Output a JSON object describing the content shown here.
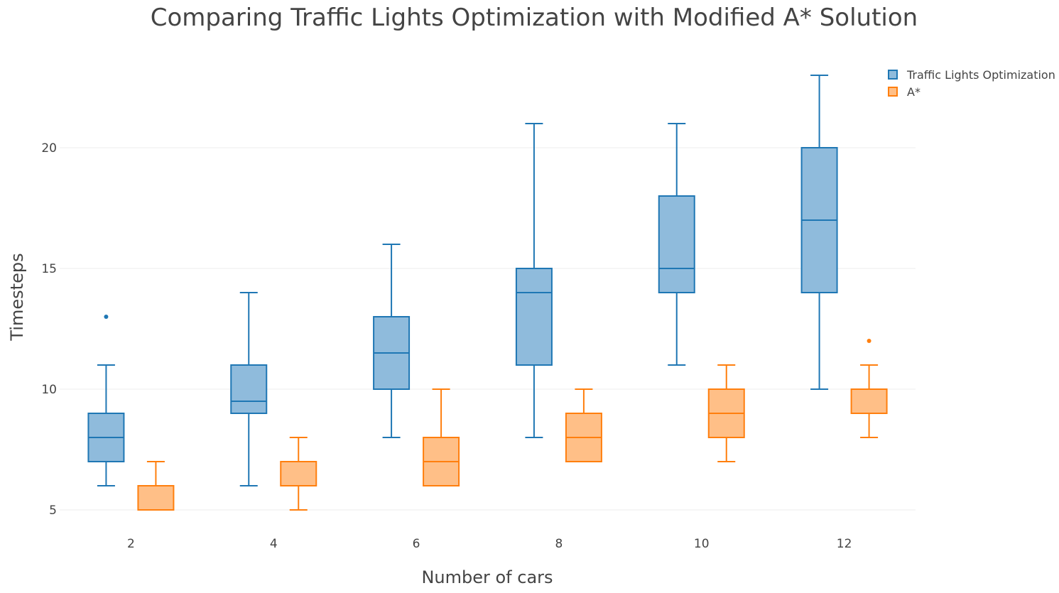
{
  "chart_data": {
    "type": "box",
    "title": "Comparing Traffic Lights Optimization with Modified A* Solution",
    "xlabel": "Number of cars",
    "ylabel": "Timesteps",
    "categories": [
      "2",
      "4",
      "6",
      "8",
      "10",
      "12"
    ],
    "y_ticks": [
      "5",
      "10",
      "15",
      "20"
    ],
    "ylim": [
      4.5,
      24.5
    ],
    "grid": true,
    "legend_position": "top-right",
    "series": [
      {
        "name": "Traffic Lights Optimization",
        "color": "#1f77b4",
        "fill": "#8fbbdc",
        "boxes": [
          {
            "min": 6,
            "q1": 7,
            "median": 8,
            "q3": 9,
            "max": 11,
            "outliers": [
              13
            ]
          },
          {
            "min": 6,
            "q1": 9,
            "median": 9.5,
            "q3": 11,
            "max": 14,
            "outliers": []
          },
          {
            "min": 8,
            "q1": 10,
            "median": 11.5,
            "q3": 13,
            "max": 16,
            "outliers": []
          },
          {
            "min": 8,
            "q1": 11,
            "median": 14,
            "q3": 15,
            "max": 21,
            "outliers": []
          },
          {
            "min": 11,
            "q1": 14,
            "median": 15,
            "q3": 18,
            "max": 21,
            "outliers": []
          },
          {
            "min": 10,
            "q1": 14,
            "median": 17,
            "q3": 20,
            "max": 23,
            "outliers": []
          }
        ]
      },
      {
        "name": "A*",
        "color": "#ff7f0e",
        "fill": "#ffbf87",
        "boxes": [
          {
            "min": 5,
            "q1": 5,
            "median": 6,
            "q3": 6,
            "max": 7,
            "outliers": []
          },
          {
            "min": 5,
            "q1": 6,
            "median": 7,
            "q3": 7,
            "max": 8,
            "outliers": []
          },
          {
            "min": 6,
            "q1": 6,
            "median": 7,
            "q3": 8,
            "max": 10,
            "outliers": []
          },
          {
            "min": 7,
            "q1": 7,
            "median": 8,
            "q3": 9,
            "max": 10,
            "outliers": []
          },
          {
            "min": 7,
            "q1": 8,
            "median": 9,
            "q3": 10,
            "max": 11,
            "outliers": []
          },
          {
            "min": 8,
            "q1": 9,
            "median": 9,
            "q3": 10,
            "max": 11,
            "outliers": [
              12
            ]
          }
        ]
      }
    ]
  }
}
